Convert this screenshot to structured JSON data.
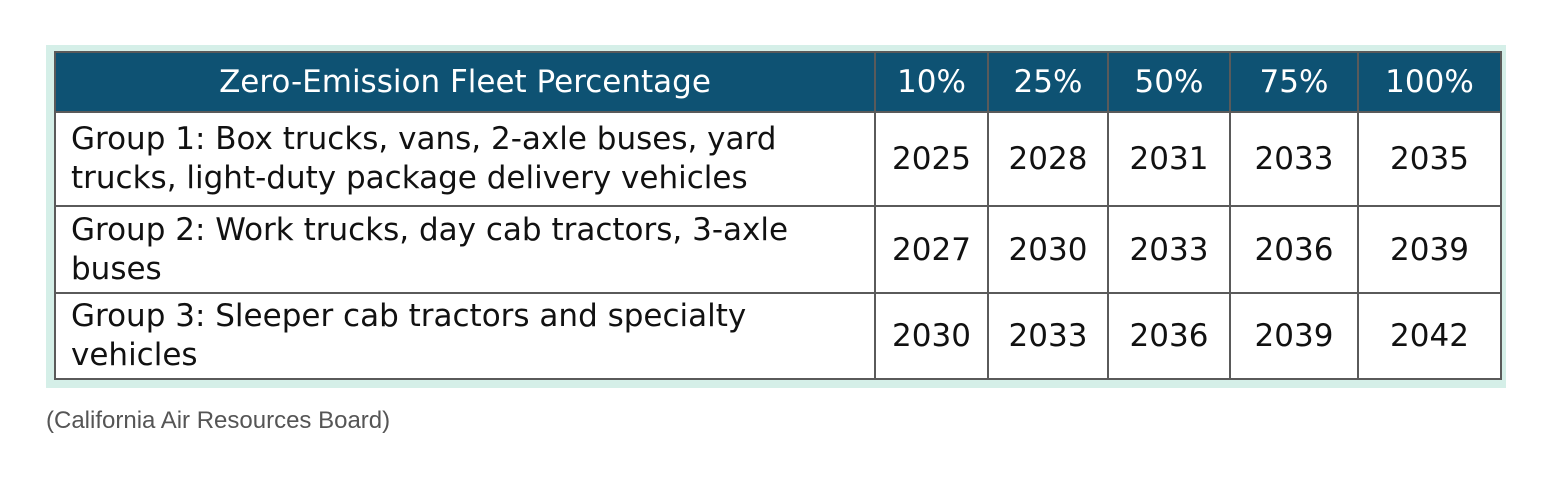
{
  "chart_data": {
    "type": "table",
    "columns": [
      "Zero-Emission Fleet Percentage",
      "10%",
      "25%",
      "50%",
      "75%",
      "100%"
    ],
    "rows": [
      {
        "label": "Group 1: Box trucks, vans, 2-axle buses, yard trucks, light-duty package delivery vehicles",
        "values": [
          "2025",
          "2028",
          "2031",
          "2033",
          "2035"
        ]
      },
      {
        "label": "Group 2: Work trucks, day cab tractors, 3-axle buses",
        "values": [
          "2027",
          "2030",
          "2033",
          "2036",
          "2039"
        ]
      },
      {
        "label": "Group 3: Sleeper cab tractors and specialty vehicles",
        "values": [
          "2030",
          "2033",
          "2036",
          "2039",
          "2042"
        ]
      }
    ]
  },
  "caption": "(California Air Resources Board)",
  "colors": {
    "header_background": "#0e5273",
    "header_text": "#ffffff",
    "frame_tint": "#d5efe8",
    "border": "#5a5a5a"
  }
}
